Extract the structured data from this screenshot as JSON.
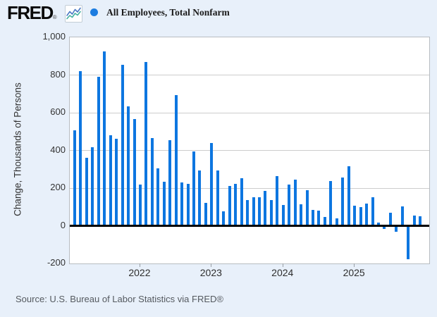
{
  "header": {
    "logo_text": "FRED",
    "registered_mark": "®",
    "legend": {
      "marker_color": "#1c7ce0",
      "label": "All Employees, Total Nonfarm"
    }
  },
  "source": {
    "text": "Source: U.S. Bureau of Labor Statistics via FRED®"
  },
  "colors": {
    "page_background": "#e8f0fa",
    "plot_background": "#ffffff",
    "frame": "#b7bcc1",
    "gridline": "#cccccc",
    "zero_line": "#000000",
    "bar": "#0d76e0",
    "icon_line_blue": "#4b79c4",
    "icon_line_green": "#43b0a1"
  },
  "chart_data": {
    "type": "bar",
    "title": "All Employees, Total Nonfarm",
    "xlabel": "",
    "ylabel": "Change, Thousands of Persons",
    "ylim": [
      -200,
      1000
    ],
    "yticks": [
      1000,
      800,
      600,
      400,
      200,
      0,
      -200
    ],
    "ytick_labels": [
      "1,000",
      "800",
      "600",
      "400",
      "200",
      "0",
      "-200"
    ],
    "xtick_labels": [
      "2022",
      "2023",
      "2024",
      "2025"
    ],
    "grid": true,
    "legend_position": "top-left",
    "x": [
      "2021-02",
      "2021-03",
      "2021-04",
      "2021-05",
      "2021-06",
      "2021-07",
      "2021-08",
      "2021-09",
      "2021-10",
      "2021-11",
      "2021-12",
      "2022-01",
      "2022-02",
      "2022-03",
      "2022-04",
      "2022-05",
      "2022-06",
      "2022-07",
      "2022-08",
      "2022-09",
      "2022-10",
      "2022-11",
      "2022-12",
      "2023-01",
      "2023-02",
      "2023-03",
      "2023-04",
      "2023-05",
      "2023-06",
      "2023-07",
      "2023-08",
      "2023-09",
      "2023-10",
      "2023-11",
      "2023-12",
      "2024-01",
      "2024-02",
      "2024-03",
      "2024-04",
      "2024-05",
      "2024-06",
      "2024-07",
      "2024-08",
      "2024-09",
      "2024-10",
      "2024-11",
      "2024-12",
      "2025-01",
      "2025-02",
      "2025-03",
      "2025-04",
      "2025-05",
      "2025-06",
      "2025-07",
      "2025-08",
      "2025-09",
      "2025-10",
      "2025-11",
      "2025-12"
    ],
    "values": [
      505,
      820,
      360,
      418,
      790,
      925,
      482,
      461,
      855,
      633,
      568,
      220,
      868,
      467,
      304,
      235,
      456,
      694,
      231,
      222,
      393,
      295,
      120,
      440,
      295,
      76,
      211,
      222,
      251,
      138,
      151,
      153,
      184,
      135,
      265,
      112,
      219,
      243,
      114,
      187,
      84,
      82,
      47,
      236,
      41,
      256,
      315,
      106,
      98,
      117,
      152,
      15,
      -18,
      68,
      -32,
      101,
      -178,
      55,
      50
    ]
  }
}
